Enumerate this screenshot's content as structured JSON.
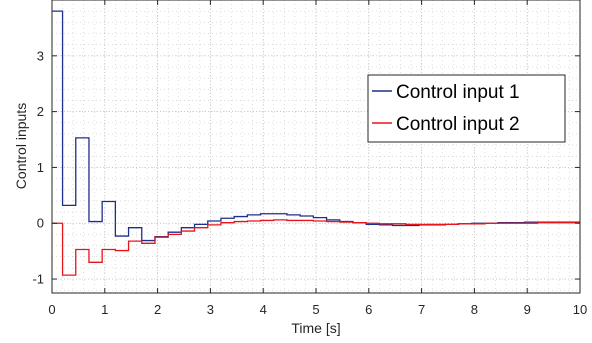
{
  "chart_data": {
    "type": "line",
    "step": true,
    "title": "",
    "xlabel": "Time [s]",
    "ylabel": "Control inputs",
    "xlim": [
      0,
      10
    ],
    "ylim": [
      -1.25,
      4
    ],
    "xticks": [
      0,
      1,
      2,
      3,
      4,
      5,
      6,
      7,
      8,
      9,
      10
    ],
    "yticks": [
      -1,
      0,
      1,
      2,
      3
    ],
    "xtick_labels": [
      "0",
      "1",
      "2",
      "3",
      "4",
      "5",
      "6",
      "7",
      "8",
      "9",
      "10"
    ],
    "ytick_labels": [
      "-1",
      "0",
      "1",
      "2",
      "3"
    ],
    "grid": true,
    "minor_grid": true,
    "legend_position": "right",
    "series": [
      {
        "name": "Control input 1",
        "color": "#1f2f8c",
        "x": [
          0,
          0.2,
          0.45,
          0.7,
          0.95,
          1.2,
          1.45,
          1.7,
          1.95,
          2.2,
          2.45,
          2.7,
          2.95,
          3.2,
          3.45,
          3.7,
          3.95,
          4.2,
          4.45,
          4.7,
          4.95,
          5.2,
          5.45,
          5.7,
          5.95,
          6.2,
          6.45,
          6.7,
          6.95,
          7.2,
          7.45,
          7.7,
          7.95,
          8.2,
          8.45,
          8.7,
          8.95,
          9.2,
          9.45,
          9.7,
          10
        ],
        "values": [
          3.8,
          0.32,
          1.53,
          0.03,
          0.39,
          -0.23,
          -0.08,
          -0.31,
          -0.24,
          -0.16,
          -0.08,
          -0.02,
          0.04,
          0.09,
          0.12,
          0.15,
          0.17,
          0.17,
          0.15,
          0.13,
          0.1,
          0.06,
          0.03,
          0.01,
          -0.02,
          -0.03,
          -0.04,
          -0.04,
          -0.03,
          -0.03,
          -0.02,
          -0.01,
          0.0,
          0.0,
          0.01,
          0.01,
          0.02,
          0.02,
          0.02,
          0.02,
          0.02
        ]
      },
      {
        "name": "Control input 2",
        "color": "#e8141c",
        "x": [
          0,
          0.2,
          0.45,
          0.7,
          0.95,
          1.2,
          1.45,
          1.7,
          1.95,
          2.2,
          2.45,
          2.7,
          2.95,
          3.2,
          3.45,
          3.7,
          3.95,
          4.2,
          4.45,
          4.7,
          4.95,
          5.2,
          5.45,
          5.7,
          5.95,
          6.2,
          6.45,
          6.7,
          6.95,
          7.2,
          7.45,
          7.7,
          7.95,
          8.2,
          8.45,
          8.7,
          8.95,
          9.2,
          9.45,
          9.7,
          10
        ],
        "values": [
          0.0,
          -0.93,
          -0.47,
          -0.7,
          -0.47,
          -0.49,
          -0.32,
          -0.36,
          -0.25,
          -0.2,
          -0.14,
          -0.08,
          -0.03,
          0.01,
          0.03,
          0.04,
          0.05,
          0.06,
          0.05,
          0.05,
          0.04,
          0.03,
          0.02,
          0.01,
          0.0,
          -0.01,
          -0.01,
          -0.02,
          -0.02,
          -0.02,
          -0.02,
          -0.01,
          -0.01,
          0.0,
          0.0,
          0.0,
          0.0,
          0.01,
          0.01,
          0.01,
          0.01
        ]
      }
    ]
  }
}
